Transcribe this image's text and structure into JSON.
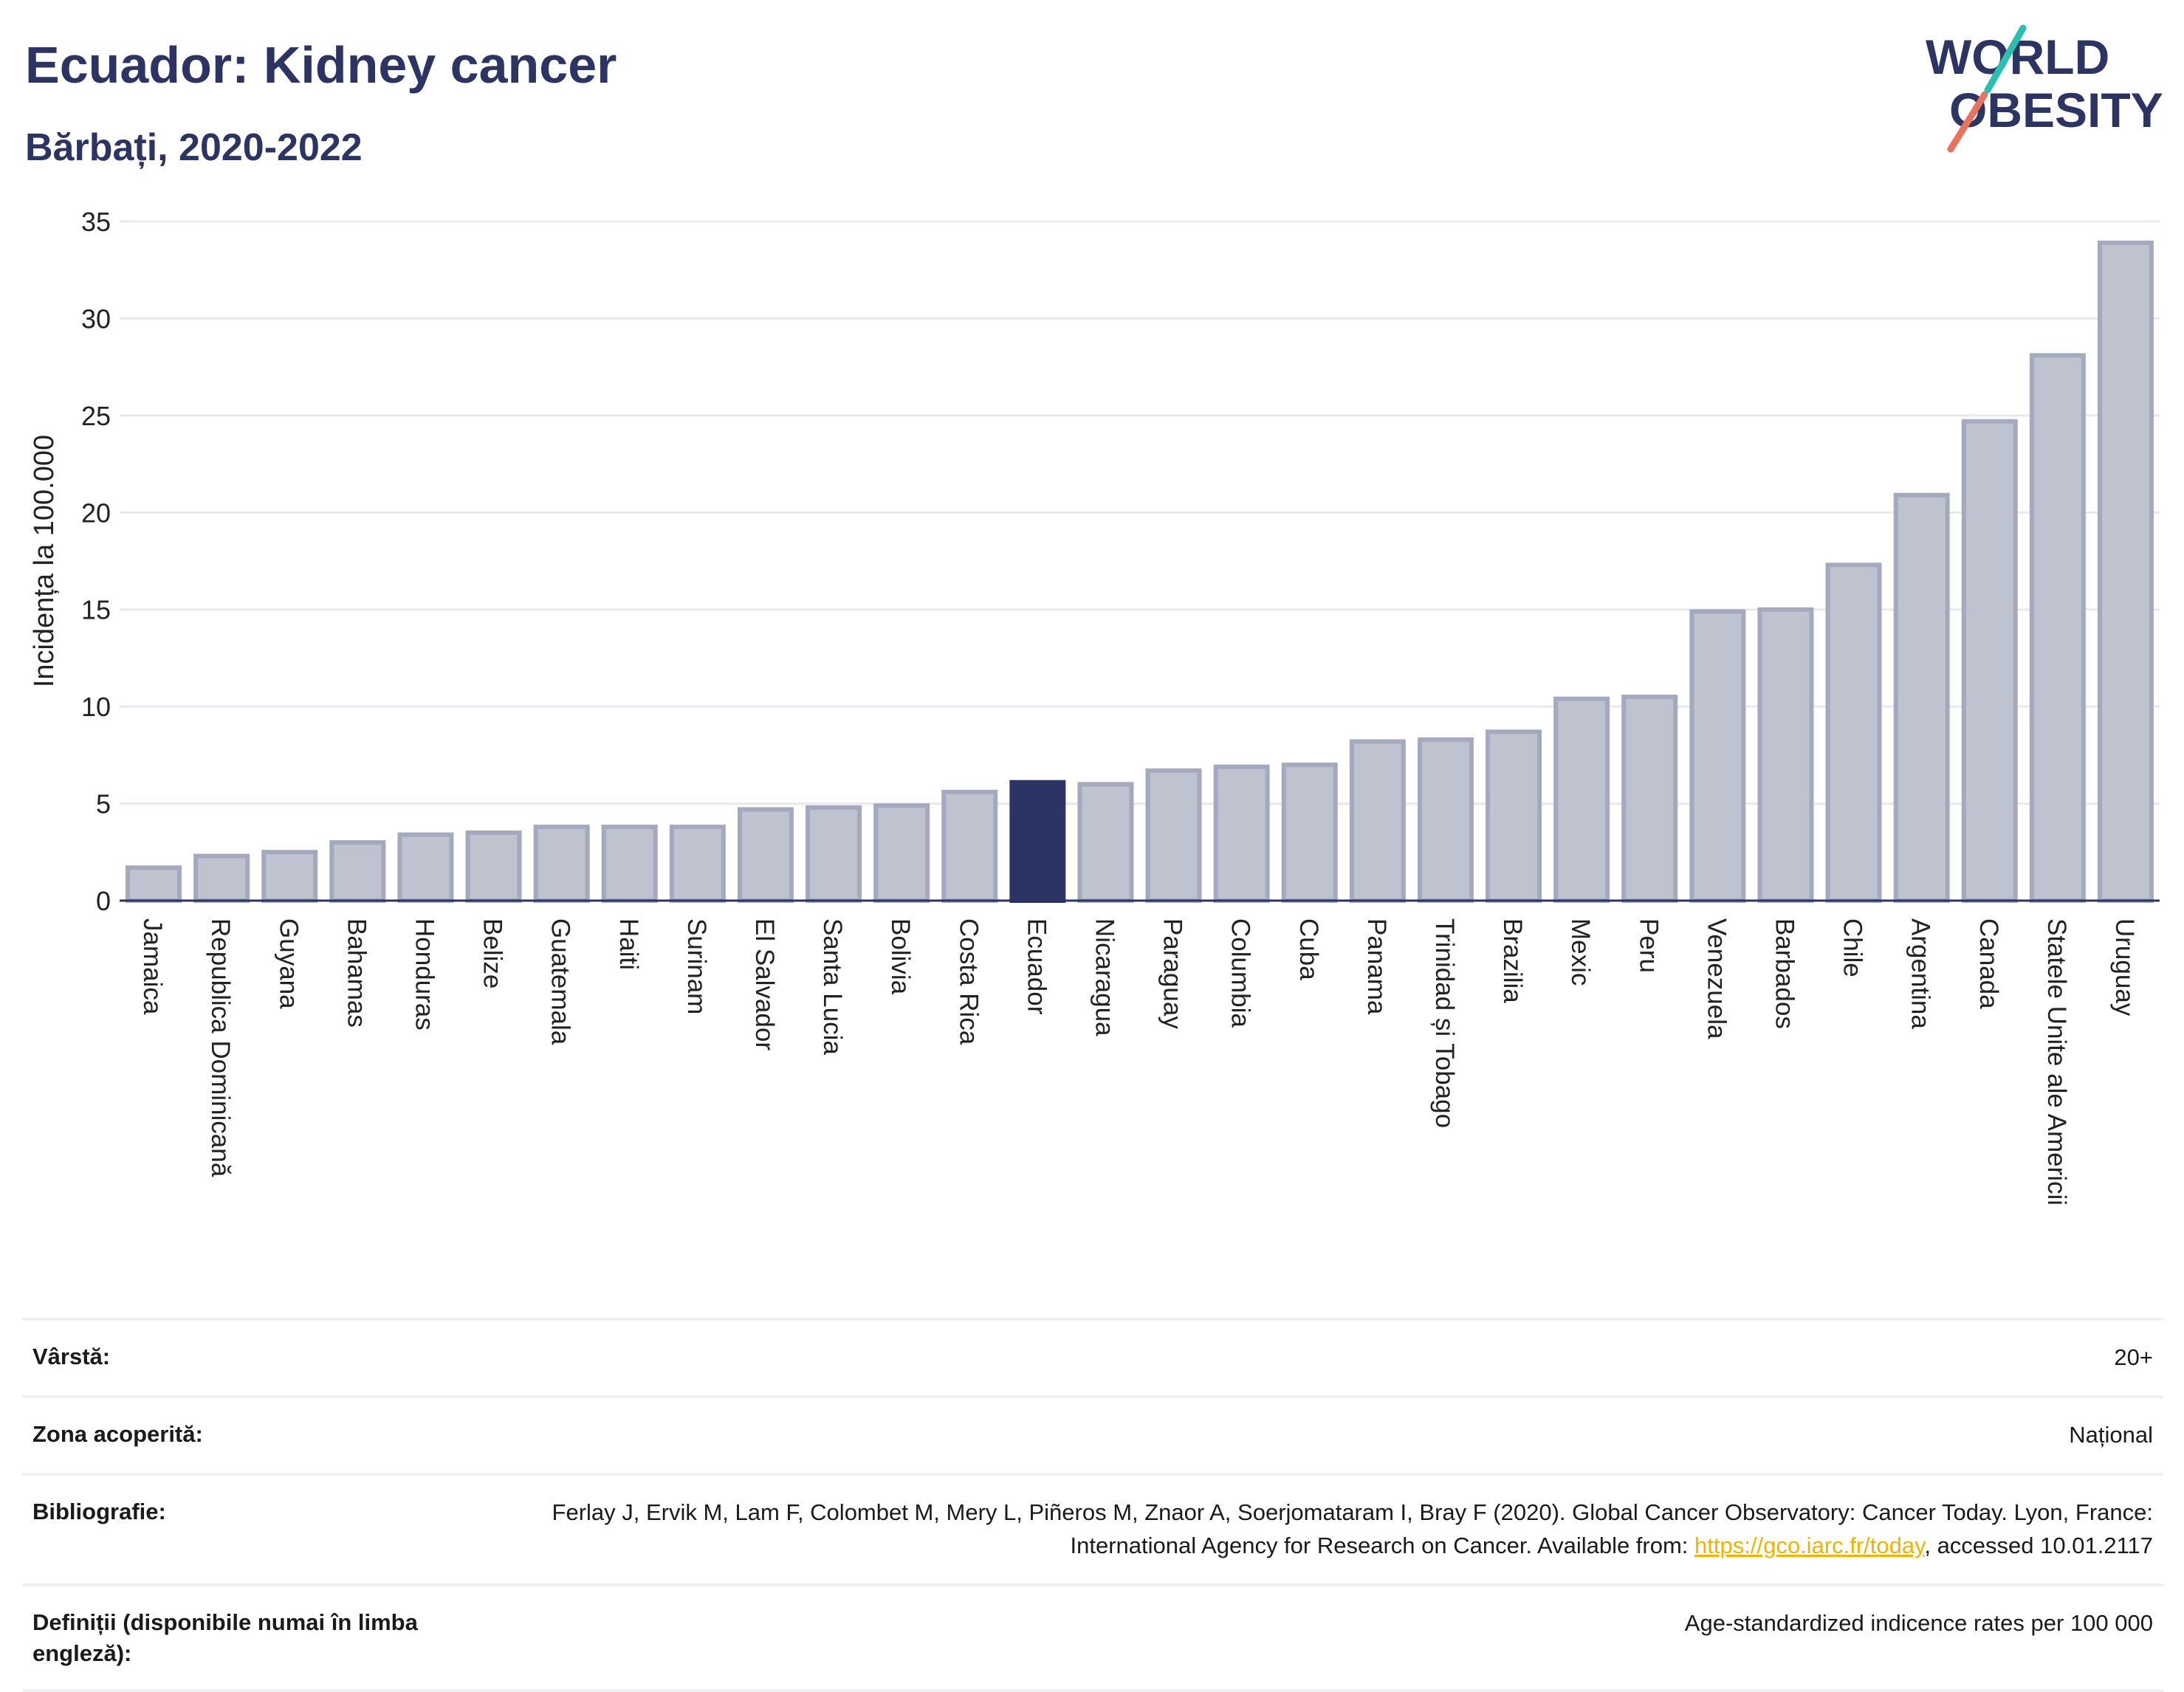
{
  "header": {
    "title": "Ecuador: Kidney cancer",
    "subtitle": "Bărbați, 2020-2022"
  },
  "logo": {
    "line1": "WORLD",
    "line2": "OBESITY"
  },
  "colors": {
    "highlight": "#2b3462",
    "bar_fill": "#bfc3d0",
    "bar_stroke": "#a4a9bd",
    "accent_teal": "#2bbfb0",
    "accent_coral": "#e8735a"
  },
  "chart_data": {
    "type": "bar",
    "title": "Ecuador: Kidney cancer",
    "subtitle": "Bărbați, 2020-2022",
    "ylabel": "Incidența la 100.000",
    "xlabel": "",
    "ylim": [
      0,
      35
    ],
    "yticks": [
      0,
      5,
      10,
      15,
      20,
      25,
      30,
      35
    ],
    "grid": true,
    "highlight": "Ecuador",
    "categories": [
      "Jamaica",
      "Republica Dominicană",
      "Guyana",
      "Bahamas",
      "Honduras",
      "Belize",
      "Guatemala",
      "Haiti",
      "Surinam",
      "El Salvador",
      "Santa Lucia",
      "Bolivia",
      "Costa Rica",
      "Ecuador",
      "Nicaragua",
      "Paraguay",
      "Columbia",
      "Cuba",
      "Panama",
      "Trinidad și Tobago",
      "Brazilia",
      "Mexic",
      "Peru",
      "Venezuela",
      "Barbados",
      "Chile",
      "Argentina",
      "Canada",
      "Statele Unite ale Americii",
      "Uruguay"
    ],
    "values": [
      1.7,
      2.3,
      2.5,
      3.0,
      3.4,
      3.5,
      3.8,
      3.8,
      3.8,
      4.7,
      4.8,
      4.9,
      5.6,
      6.1,
      6.0,
      6.7,
      6.9,
      7.0,
      8.2,
      8.3,
      8.7,
      10.4,
      10.5,
      14.9,
      15.0,
      17.3,
      20.9,
      24.7,
      28.1,
      33.9
    ]
  },
  "info": {
    "age_label": "Vârstă:",
    "age_value": "20+",
    "coverage_label": "Zona acoperită:",
    "coverage_value": "Național",
    "bibliography_label": "Bibliografie:",
    "bibliography_text": "Ferlay J, Ervik M, Lam F, Colombet M, Mery L, Piñeros M, Znaor A, Soerjomataram I, Bray F (2020). Global Cancer Observatory: Cancer Today. Lyon, France: International Agency for Research on Cancer. Available from: ",
    "bibliography_link": "https://gco.iarc.fr/today",
    "bibliography_suffix": ", accessed 10.01.2117",
    "definitions_label": "Definiții (disponibile numai în limba engleză):",
    "definitions_value": "Age-standardized indicence rates per 100 000"
  }
}
